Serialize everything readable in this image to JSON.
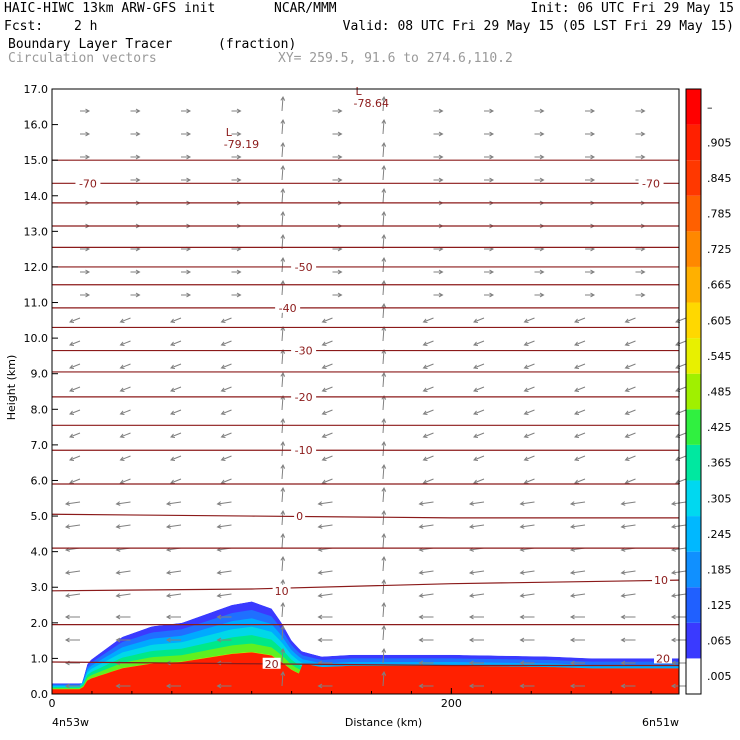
{
  "header": {
    "model": "HAIC-HIWC 13km ARW-GFS init",
    "org": "NCAR/MMM",
    "init": "Init: 06 UTC Fri 29 May 15",
    "fcst_label": "Fcst:",
    "fcst_value": "2 h",
    "valid": "Valid: 08 UTC Fri 29 May 15 (05 LST Fri 29 May 15)",
    "field": "Boundary Layer Tracer",
    "field_units": "(fraction)",
    "overlay": "Circulation vectors",
    "cross_section": "XY= 259.5, 91.6 to 274.6,110.2"
  },
  "colors": {
    "contour": "#8b1a1a",
    "vector": "#808080",
    "tracer_max": "#ff2000"
  },
  "chart_data": {
    "type": "heatmap",
    "title": "Boundary Layer Tracer",
    "xlabel": "Distance (km)",
    "ylabel": "Height (km)",
    "xlim": [
      0,
      314
    ],
    "ylim": [
      0,
      17
    ],
    "x_ticks": [
      {
        "value": 0,
        "label": "0"
      },
      {
        "value": 200,
        "label": "200"
      }
    ],
    "x_end_labels": {
      "left": "4n53w",
      "right": "6n51w"
    },
    "y_ticks": [
      0,
      1,
      2,
      3,
      4,
      5,
      6,
      7,
      8,
      9,
      10,
      11,
      12,
      13,
      14,
      15,
      16,
      17
    ],
    "colorbar": {
      "labels": [
        ".005",
        ".065",
        ".125",
        ".185",
        ".245",
        ".305",
        ".365",
        ".425",
        ".485",
        ".545",
        ".605",
        ".665",
        ".725",
        ".785",
        ".845",
        ".905",
        "–"
      ],
      "colors": [
        "#ffffff",
        "#3a3aff",
        "#2060ff",
        "#1090ff",
        "#00b8ff",
        "#00d8f0",
        "#00e8a0",
        "#30f040",
        "#a0f000",
        "#e8f000",
        "#ffd800",
        "#ffb000",
        "#ff8800",
        "#ff6000",
        "#ff3800",
        "#ff2000",
        "#ff0000"
      ]
    },
    "tracer_top": {
      "x": [
        0,
        15,
        18,
        35,
        50,
        65,
        75,
        90,
        100,
        110,
        115,
        120,
        125,
        135,
        150,
        200,
        250,
        270,
        290,
        314
      ],
      "z": [
        0.3,
        0.3,
        0.9,
        1.6,
        1.9,
        2.0,
        2.2,
        2.5,
        2.6,
        2.4,
        2.0,
        1.5,
        1.2,
        1.05,
        1.1,
        1.1,
        1.05,
        1.0,
        1.0,
        1.0
      ]
    },
    "temperature_contours": [
      {
        "label": "20",
        "x": [
          0,
          100,
          200,
          314
        ],
        "z": [
          0.9,
          0.85,
          0.8,
          0.8
        ]
      },
      {
        "label": "10",
        "x": [
          0,
          100,
          200,
          314
        ],
        "z": [
          2.9,
          2.95,
          3.1,
          3.2
        ]
      },
      {
        "label": "0",
        "x": [
          0,
          100,
          200,
          314
        ],
        "z": [
          5.05,
          5.0,
          4.95,
          4.95
        ]
      },
      {
        "label": "-10",
        "x": [
          0,
          100,
          200,
          314
        ],
        "z": [
          6.85,
          6.85,
          6.85,
          6.85
        ]
      },
      {
        "label": "-20",
        "x": [
          0,
          100,
          200,
          314
        ],
        "z": [
          8.35,
          8.35,
          8.35,
          8.35
        ]
      },
      {
        "label": "-30",
        "x": [
          0,
          100,
          200,
          314
        ],
        "z": [
          9.65,
          9.65,
          9.65,
          9.65
        ]
      },
      {
        "label": "-40",
        "x": [
          0,
          100,
          200,
          314
        ],
        "z": [
          10.85,
          10.85,
          10.85,
          10.85
        ]
      },
      {
        "label": "-50",
        "x": [
          0,
          100,
          200,
          314
        ],
        "z": [
          12.0,
          12.0,
          12.0,
          12.0
        ]
      },
      {
        "label": "-70",
        "x": [
          0,
          100,
          200,
          314
        ],
        "z": [
          14.35,
          14.35,
          14.35,
          14.35
        ]
      }
    ],
    "contour_labels": [
      {
        "text": "20",
        "x": 110,
        "z": 0.85
      },
      {
        "text": "20",
        "x": 306,
        "z": 1.0
      },
      {
        "text": "10",
        "x": 115,
        "z": 2.9
      },
      {
        "text": "10",
        "x": 305,
        "z": 3.2
      },
      {
        "text": "0",
        "x": 124,
        "z": 5.0
      },
      {
        "text": "-10",
        "x": 126,
        "z": 6.85
      },
      {
        "text": "-20",
        "x": 126,
        "z": 8.35
      },
      {
        "text": "-30",
        "x": 126,
        "z": 9.65
      },
      {
        "text": "-40",
        "x": 118,
        "z": 10.85
      },
      {
        "text": "-50",
        "x": 126,
        "z": 12.0
      },
      {
        "text": "-70",
        "x": 18,
        "z": 14.35
      },
      {
        "text": "-70",
        "x": 300,
        "z": 14.35
      }
    ],
    "lows": [
      {
        "label": "L",
        "value": "-78.64",
        "x": 158,
        "z": 16.75
      },
      {
        "label": "L",
        "value": "-79.19",
        "x": 93,
        "z": 15.6
      }
    ]
  }
}
